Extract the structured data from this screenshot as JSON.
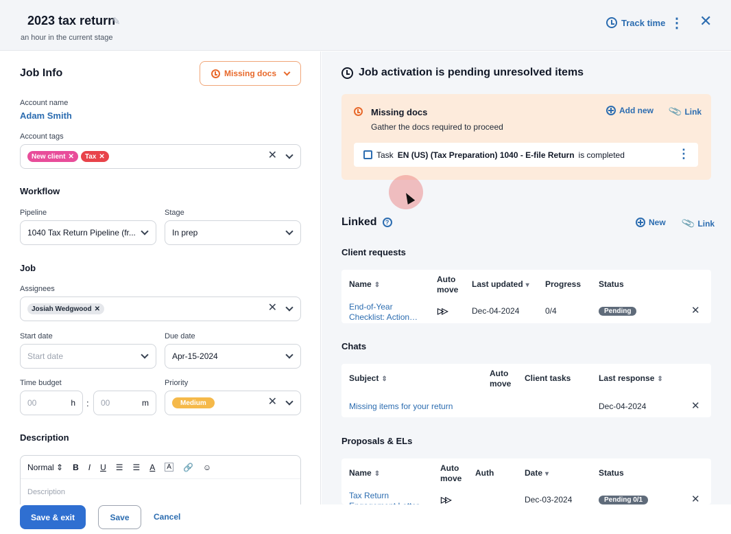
{
  "header": {
    "title": "2023 tax return",
    "subtitle": "an hour in the current stage",
    "track_time": "Track time"
  },
  "job_info": {
    "title": "Job Info",
    "missing_docs_button": "Missing docs",
    "account_name_label": "Account name",
    "account_name": "Adam Smith",
    "account_tags_label": "Account tags",
    "tags": [
      "New client",
      "Tax"
    ],
    "workflow_title": "Workflow",
    "pipeline_label": "Pipeline",
    "pipeline_value": "1040 Tax Return Pipeline (fr...",
    "stage_label": "Stage",
    "stage_value": "In prep",
    "job_title": "Job",
    "assignees_label": "Assignees",
    "assignee": "Josiah Wedgwood",
    "start_date_label": "Start date",
    "start_date_placeholder": "Start date",
    "due_date_label": "Due date",
    "due_date_value": "Apr-15-2024",
    "time_budget_label": "Time budget",
    "hours_placeholder": "00",
    "hours_unit": "h",
    "minutes_placeholder": "00",
    "minutes_unit": "m",
    "separator": ":",
    "priority_label": "Priority",
    "priority_value": "Medium",
    "description_title": "Description",
    "editor_style": "Normal",
    "description_placeholder": "Description"
  },
  "footer": {
    "save_exit": "Save & exit",
    "save": "Save",
    "cancel": "Cancel"
  },
  "activation": {
    "title": "Job activation is pending unresolved items",
    "card_title": "Missing docs",
    "card_subtitle": "Gather the docs required to proceed",
    "add_new": "Add new",
    "link": "Link",
    "task_prefix": "Task",
    "task_name": "EN (US) (Tax Preparation) 1040 - E-file Return",
    "task_suffix": "is completed"
  },
  "linked": {
    "title": "Linked",
    "new": "New",
    "link": "Link",
    "client_requests": {
      "title": "Client requests",
      "headers": [
        "Name",
        "Auto move",
        "Last updated",
        "Progress",
        "Status"
      ],
      "rows": [
        {
          "name": "End-of-Year Checklist: Action…",
          "last_updated": "Dec-04-2024",
          "progress": "0/4",
          "status": "Pending"
        }
      ]
    },
    "chats": {
      "title": "Chats",
      "headers": [
        "Subject",
        "Auto move",
        "Client tasks",
        "Last response"
      ],
      "rows": [
        {
          "subject": "Missing items for your return",
          "last_response": "Dec-04-2024"
        }
      ]
    },
    "proposals": {
      "title": "Proposals & ELs",
      "headers": [
        "Name",
        "Auto move",
        "Auth",
        "Date",
        "Status"
      ],
      "rows": [
        {
          "name": "Tax Return Engagement Letter",
          "date": "Dec-03-2024",
          "status": "Pending 0/1"
        }
      ]
    }
  },
  "colors": {
    "accent": "#2f6fd1",
    "warning": "#e8692b",
    "warning_bg": "#fdebdc"
  }
}
